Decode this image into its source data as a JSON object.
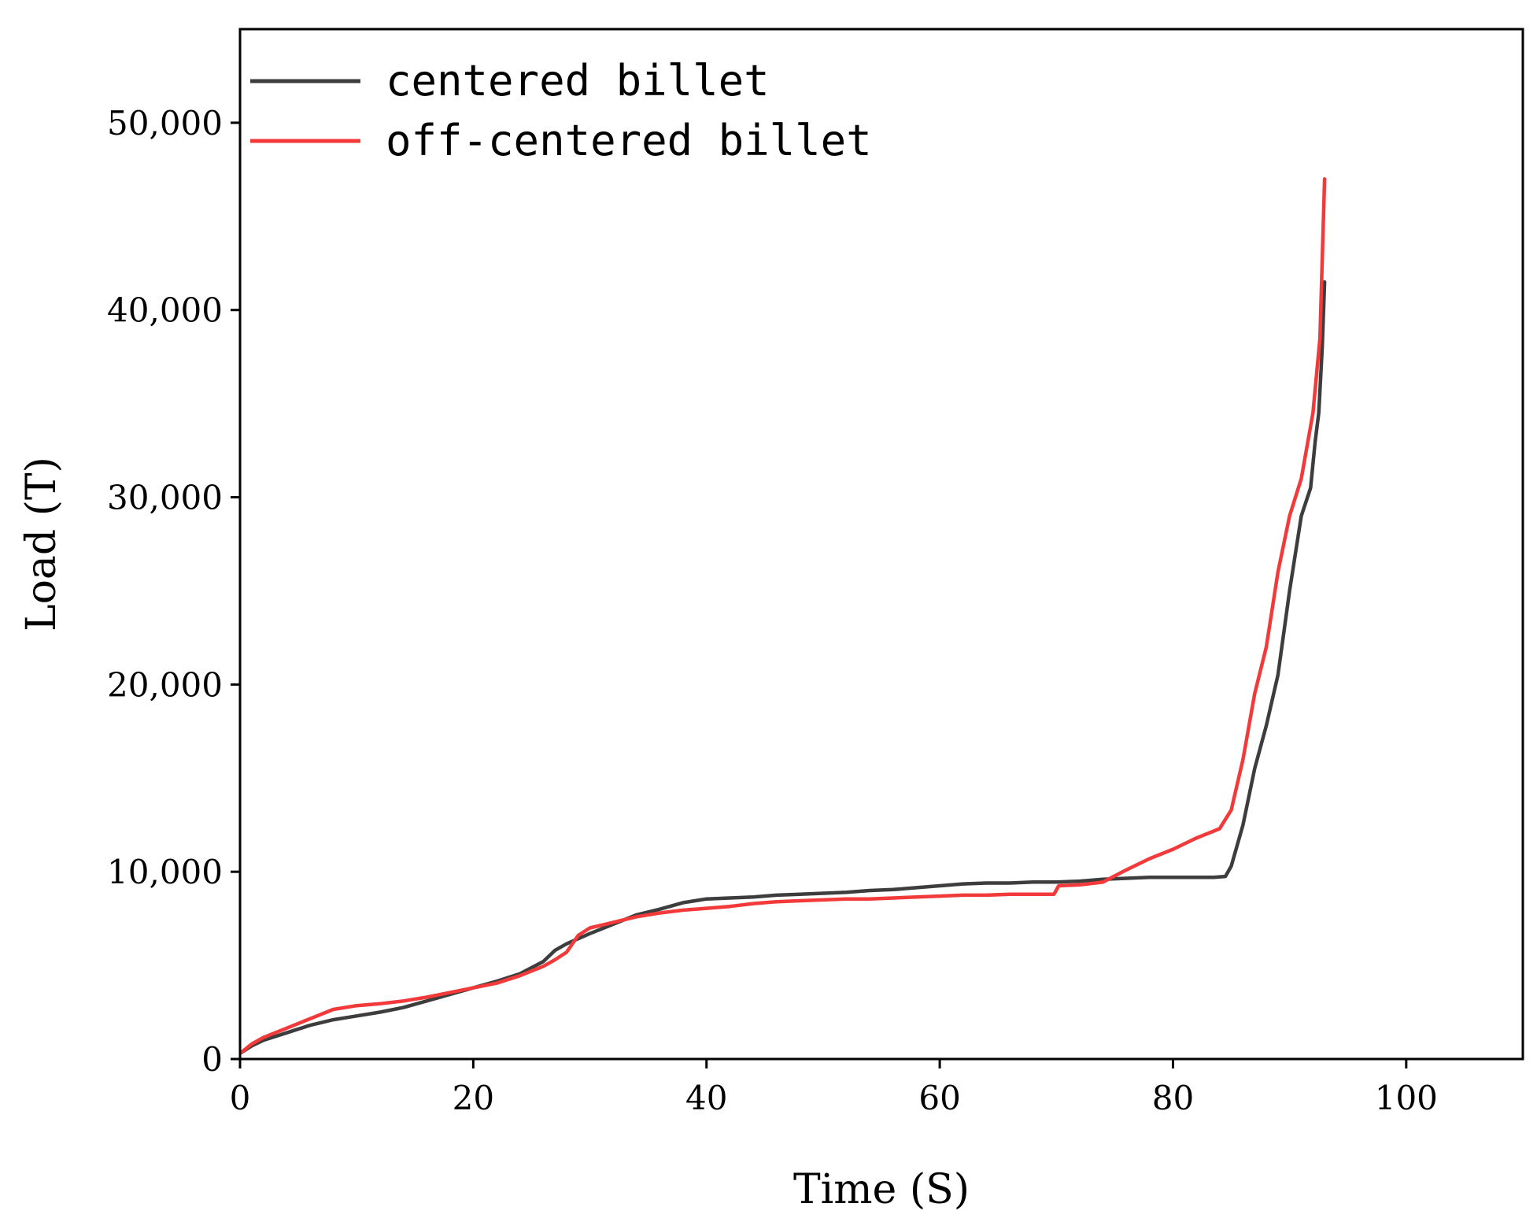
{
  "chart_data": {
    "type": "line",
    "title": "",
    "xlabel": "Time (S)",
    "ylabel": "Load (T)",
    "xlim": [
      0,
      110
    ],
    "ylim": [
      0,
      55000
    ],
    "grid": false,
    "legend_position": "top-left",
    "x_ticks": [
      0,
      20,
      40,
      60,
      80,
      100
    ],
    "x_tick_labels": [
      "0",
      "20",
      "40",
      "60",
      "80",
      "100"
    ],
    "y_ticks": [
      0,
      10000,
      20000,
      30000,
      40000,
      50000
    ],
    "y_tick_labels": [
      "0",
      "10,000",
      "20,000",
      "30,000",
      "40,000",
      "50,000"
    ],
    "series": [
      {
        "name": "centered billet",
        "color": "#3d3d3d",
        "points": [
          [
            0,
            300
          ],
          [
            1,
            700
          ],
          [
            2,
            1000
          ],
          [
            4,
            1400
          ],
          [
            6,
            1800
          ],
          [
            8,
            2100
          ],
          [
            10,
            2300
          ],
          [
            12,
            2500
          ],
          [
            14,
            2750
          ],
          [
            16,
            3100
          ],
          [
            18,
            3450
          ],
          [
            20,
            3800
          ],
          [
            22,
            4150
          ],
          [
            24,
            4550
          ],
          [
            26,
            5200
          ],
          [
            27,
            5800
          ],
          [
            28,
            6150
          ],
          [
            30,
            6700
          ],
          [
            32,
            7200
          ],
          [
            34,
            7700
          ],
          [
            36,
            8000
          ],
          [
            38,
            8350
          ],
          [
            40,
            8550
          ],
          [
            42,
            8600
          ],
          [
            44,
            8650
          ],
          [
            46,
            8750
          ],
          [
            48,
            8800
          ],
          [
            50,
            8850
          ],
          [
            52,
            8900
          ],
          [
            54,
            9000
          ],
          [
            56,
            9050
          ],
          [
            58,
            9150
          ],
          [
            60,
            9250
          ],
          [
            62,
            9350
          ],
          [
            64,
            9400
          ],
          [
            66,
            9400
          ],
          [
            68,
            9450
          ],
          [
            70,
            9450
          ],
          [
            72,
            9500
          ],
          [
            74,
            9600
          ],
          [
            76,
            9650
          ],
          [
            78,
            9700
          ],
          [
            80,
            9700
          ],
          [
            82,
            9700
          ],
          [
            83.5,
            9700
          ],
          [
            84.5,
            9750
          ],
          [
            85,
            10300
          ],
          [
            86,
            12500
          ],
          [
            87,
            15500
          ],
          [
            88,
            17800
          ],
          [
            89,
            20500
          ],
          [
            90,
            25000
          ],
          [
            91,
            29000
          ],
          [
            91.8,
            30500
          ],
          [
            92.2,
            33000
          ],
          [
            92.5,
            34500
          ],
          [
            92.8,
            38000
          ],
          [
            93,
            41500
          ]
        ]
      },
      {
        "name": "off-centered billet",
        "color": "#f23a3a",
        "points": [
          [
            0,
            300
          ],
          [
            1,
            800
          ],
          [
            2,
            1150
          ],
          [
            4,
            1650
          ],
          [
            6,
            2150
          ],
          [
            8,
            2650
          ],
          [
            10,
            2850
          ],
          [
            12,
            2950
          ],
          [
            14,
            3100
          ],
          [
            16,
            3300
          ],
          [
            18,
            3550
          ],
          [
            20,
            3800
          ],
          [
            22,
            4050
          ],
          [
            24,
            4450
          ],
          [
            26,
            4950
          ],
          [
            27,
            5300
          ],
          [
            28,
            5700
          ],
          [
            29,
            6600
          ],
          [
            30,
            7000
          ],
          [
            32,
            7300
          ],
          [
            34,
            7600
          ],
          [
            36,
            7800
          ],
          [
            38,
            7950
          ],
          [
            40,
            8050
          ],
          [
            42,
            8150
          ],
          [
            44,
            8300
          ],
          [
            46,
            8400
          ],
          [
            48,
            8450
          ],
          [
            50,
            8500
          ],
          [
            52,
            8550
          ],
          [
            54,
            8550
          ],
          [
            56,
            8600
          ],
          [
            58,
            8650
          ],
          [
            60,
            8700
          ],
          [
            62,
            8750
          ],
          [
            64,
            8750
          ],
          [
            66,
            8800
          ],
          [
            68,
            8800
          ],
          [
            69.8,
            8800
          ],
          [
            70.2,
            9250
          ],
          [
            72,
            9300
          ],
          [
            74,
            9450
          ],
          [
            76,
            10100
          ],
          [
            78,
            10700
          ],
          [
            80,
            11200
          ],
          [
            82,
            11800
          ],
          [
            84,
            12300
          ],
          [
            85,
            13300
          ],
          [
            86,
            16000
          ],
          [
            87,
            19500
          ],
          [
            88,
            22000
          ],
          [
            89,
            26000
          ],
          [
            90,
            29000
          ],
          [
            91,
            31000
          ],
          [
            92,
            34500
          ],
          [
            92.6,
            38500
          ],
          [
            93,
            47000
          ]
        ]
      }
    ]
  }
}
